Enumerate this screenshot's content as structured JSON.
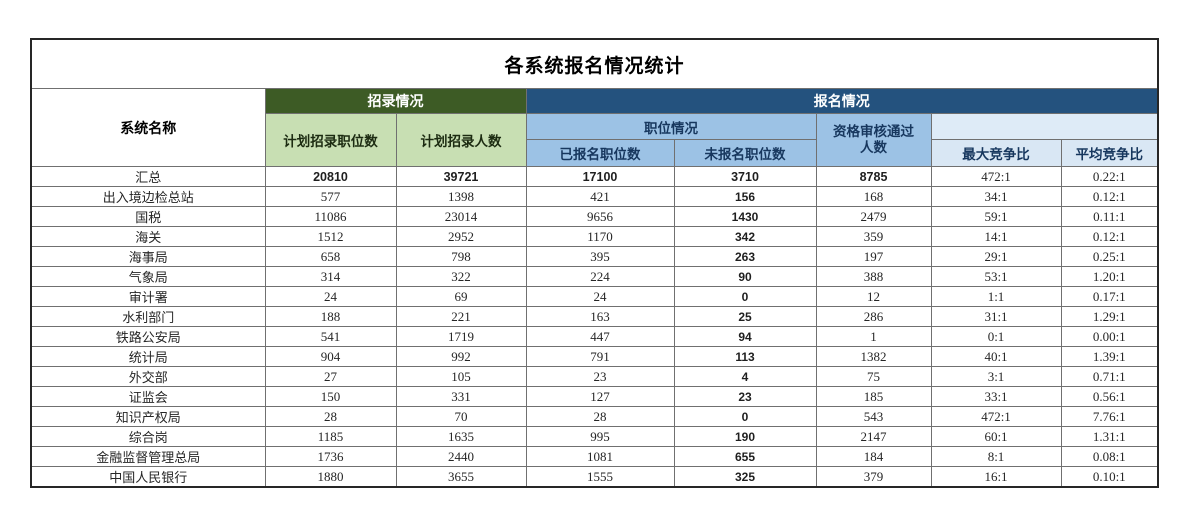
{
  "title": "各系统报名情况统计",
  "colors": {
    "header_dark_green": "#3d5b25",
    "header_light_green": "#c8dfb3",
    "header_dark_blue": "#24527e",
    "header_mid_blue": "#9cc2e5",
    "header_pale_blue": "#deebf7",
    "header_light_blue": "#d9e7f4",
    "grid_line": "#707070",
    "outer_border": "#262626"
  },
  "headers": {
    "system": "系统名称",
    "recruit": "招录情况",
    "signup": "报名情况",
    "planned_positions": "计划招录职位数",
    "planned_headcount": "计划招录人数",
    "position_status": "职位情况",
    "registered": "已报名职位数",
    "unregistered": "未报名职位数",
    "qualified": "资格审核通过\n人数",
    "max_ratio": "最大竞争比",
    "avg_ratio": "平均竞争比",
    "blank": ""
  },
  "table": {
    "rows": [
      {
        "name": "汇总",
        "values": [
          "20810",
          "39721",
          "17100",
          "3710",
          "8785",
          "472:1",
          "0.22:1"
        ]
      },
      {
        "name": "出入境边检总站",
        "values": [
          "577",
          "1398",
          "421",
          "156",
          "168",
          "34:1",
          "0.12:1"
        ]
      },
      {
        "name": "国税",
        "values": [
          "11086",
          "23014",
          "9656",
          "1430",
          "2479",
          "59:1",
          "0.11:1"
        ]
      },
      {
        "name": "海关",
        "values": [
          "1512",
          "2952",
          "1170",
          "342",
          "359",
          "14:1",
          "0.12:1"
        ]
      },
      {
        "name": "海事局",
        "values": [
          "658",
          "798",
          "395",
          "263",
          "197",
          "29:1",
          "0.25:1"
        ]
      },
      {
        "name": "气象局",
        "values": [
          "314",
          "322",
          "224",
          "90",
          "388",
          "53:1",
          "1.20:1"
        ]
      },
      {
        "name": "审计署",
        "values": [
          "24",
          "69",
          "24",
          "0",
          "12",
          "1:1",
          "0.17:1"
        ]
      },
      {
        "name": "水利部门",
        "values": [
          "188",
          "221",
          "163",
          "25",
          "286",
          "31:1",
          "1.29:1"
        ]
      },
      {
        "name": "铁路公安局",
        "values": [
          "541",
          "1719",
          "447",
          "94",
          "1",
          "0:1",
          "0.00:1"
        ]
      },
      {
        "name": "统计局",
        "values": [
          "904",
          "992",
          "791",
          "113",
          "1382",
          "40:1",
          "1.39:1"
        ]
      },
      {
        "name": "外交部",
        "values": [
          "27",
          "105",
          "23",
          "4",
          "75",
          "3:1",
          "0.71:1"
        ]
      },
      {
        "name": "证监会",
        "values": [
          "150",
          "331",
          "127",
          "23",
          "185",
          "33:1",
          "0.56:1"
        ]
      },
      {
        "name": "知识产权局",
        "values": [
          "28",
          "70",
          "28",
          "0",
          "543",
          "472:1",
          "7.76:1"
        ]
      },
      {
        "name": "综合岗",
        "values": [
          "1185",
          "1635",
          "995",
          "190",
          "2147",
          "60:1",
          "1.31:1"
        ]
      },
      {
        "name": "金融监督管理总局",
        "values": [
          "1736",
          "2440",
          "1081",
          "655",
          "184",
          "8:1",
          "0.08:1"
        ]
      },
      {
        "name": "中国人民银行",
        "values": [
          "1880",
          "3655",
          "1555",
          "325",
          "379",
          "16:1",
          "0.10:1"
        ]
      }
    ]
  },
  "chart_data": {
    "type": "table",
    "title": "各系统报名情况统计",
    "columns": [
      "系统名称",
      "计划招录职位数",
      "计划招录人数",
      "已报名职位数",
      "未报名职位数",
      "资格审核通过人数",
      "最大竞争比",
      "平均竞争比"
    ],
    "column_groups": {
      "招录情况": [
        "计划招录职位数",
        "计划招录人数"
      ],
      "报名情况": [
        "已报名职位数",
        "未报名职位数",
        "资格审核通过人数",
        "最大竞争比",
        "平均竞争比"
      ],
      "职位情况": [
        "已报名职位数",
        "未报名职位数"
      ]
    },
    "rows": [
      [
        "汇总",
        20810,
        39721,
        17100,
        3710,
        8785,
        "472:1",
        "0.22:1"
      ],
      [
        "出入境边检总站",
        577,
        1398,
        421,
        156,
        168,
        "34:1",
        "0.12:1"
      ],
      [
        "国税",
        11086,
        23014,
        9656,
        1430,
        2479,
        "59:1",
        "0.11:1"
      ],
      [
        "海关",
        1512,
        2952,
        1170,
        342,
        359,
        "14:1",
        "0.12:1"
      ],
      [
        "海事局",
        658,
        798,
        395,
        263,
        197,
        "29:1",
        "0.25:1"
      ],
      [
        "气象局",
        314,
        322,
        224,
        90,
        388,
        "53:1",
        "1.20:1"
      ],
      [
        "审计署",
        24,
        69,
        24,
        0,
        12,
        "1:1",
        "0.17:1"
      ],
      [
        "水利部门",
        188,
        221,
        163,
        25,
        286,
        "31:1",
        "1.29:1"
      ],
      [
        "铁路公安局",
        541,
        1719,
        447,
        94,
        1,
        "0:1",
        "0.00:1"
      ],
      [
        "统计局",
        904,
        992,
        791,
        113,
        1382,
        "40:1",
        "1.39:1"
      ],
      [
        "外交部",
        27,
        105,
        23,
        4,
        75,
        "3:1",
        "0.71:1"
      ],
      [
        "证监会",
        150,
        331,
        127,
        23,
        185,
        "33:1",
        "0.56:1"
      ],
      [
        "知识产权局",
        28,
        70,
        28,
        0,
        543,
        "472:1",
        "7.76:1"
      ],
      [
        "综合岗",
        1185,
        1635,
        995,
        190,
        2147,
        "60:1",
        "1.31:1"
      ],
      [
        "金融监督管理总局",
        1736,
        2440,
        1081,
        655,
        184,
        "8:1",
        "0.08:1"
      ],
      [
        "中国人民银行",
        1880,
        3655,
        1555,
        325,
        379,
        "16:1",
        "0.10:1"
      ]
    ]
  }
}
